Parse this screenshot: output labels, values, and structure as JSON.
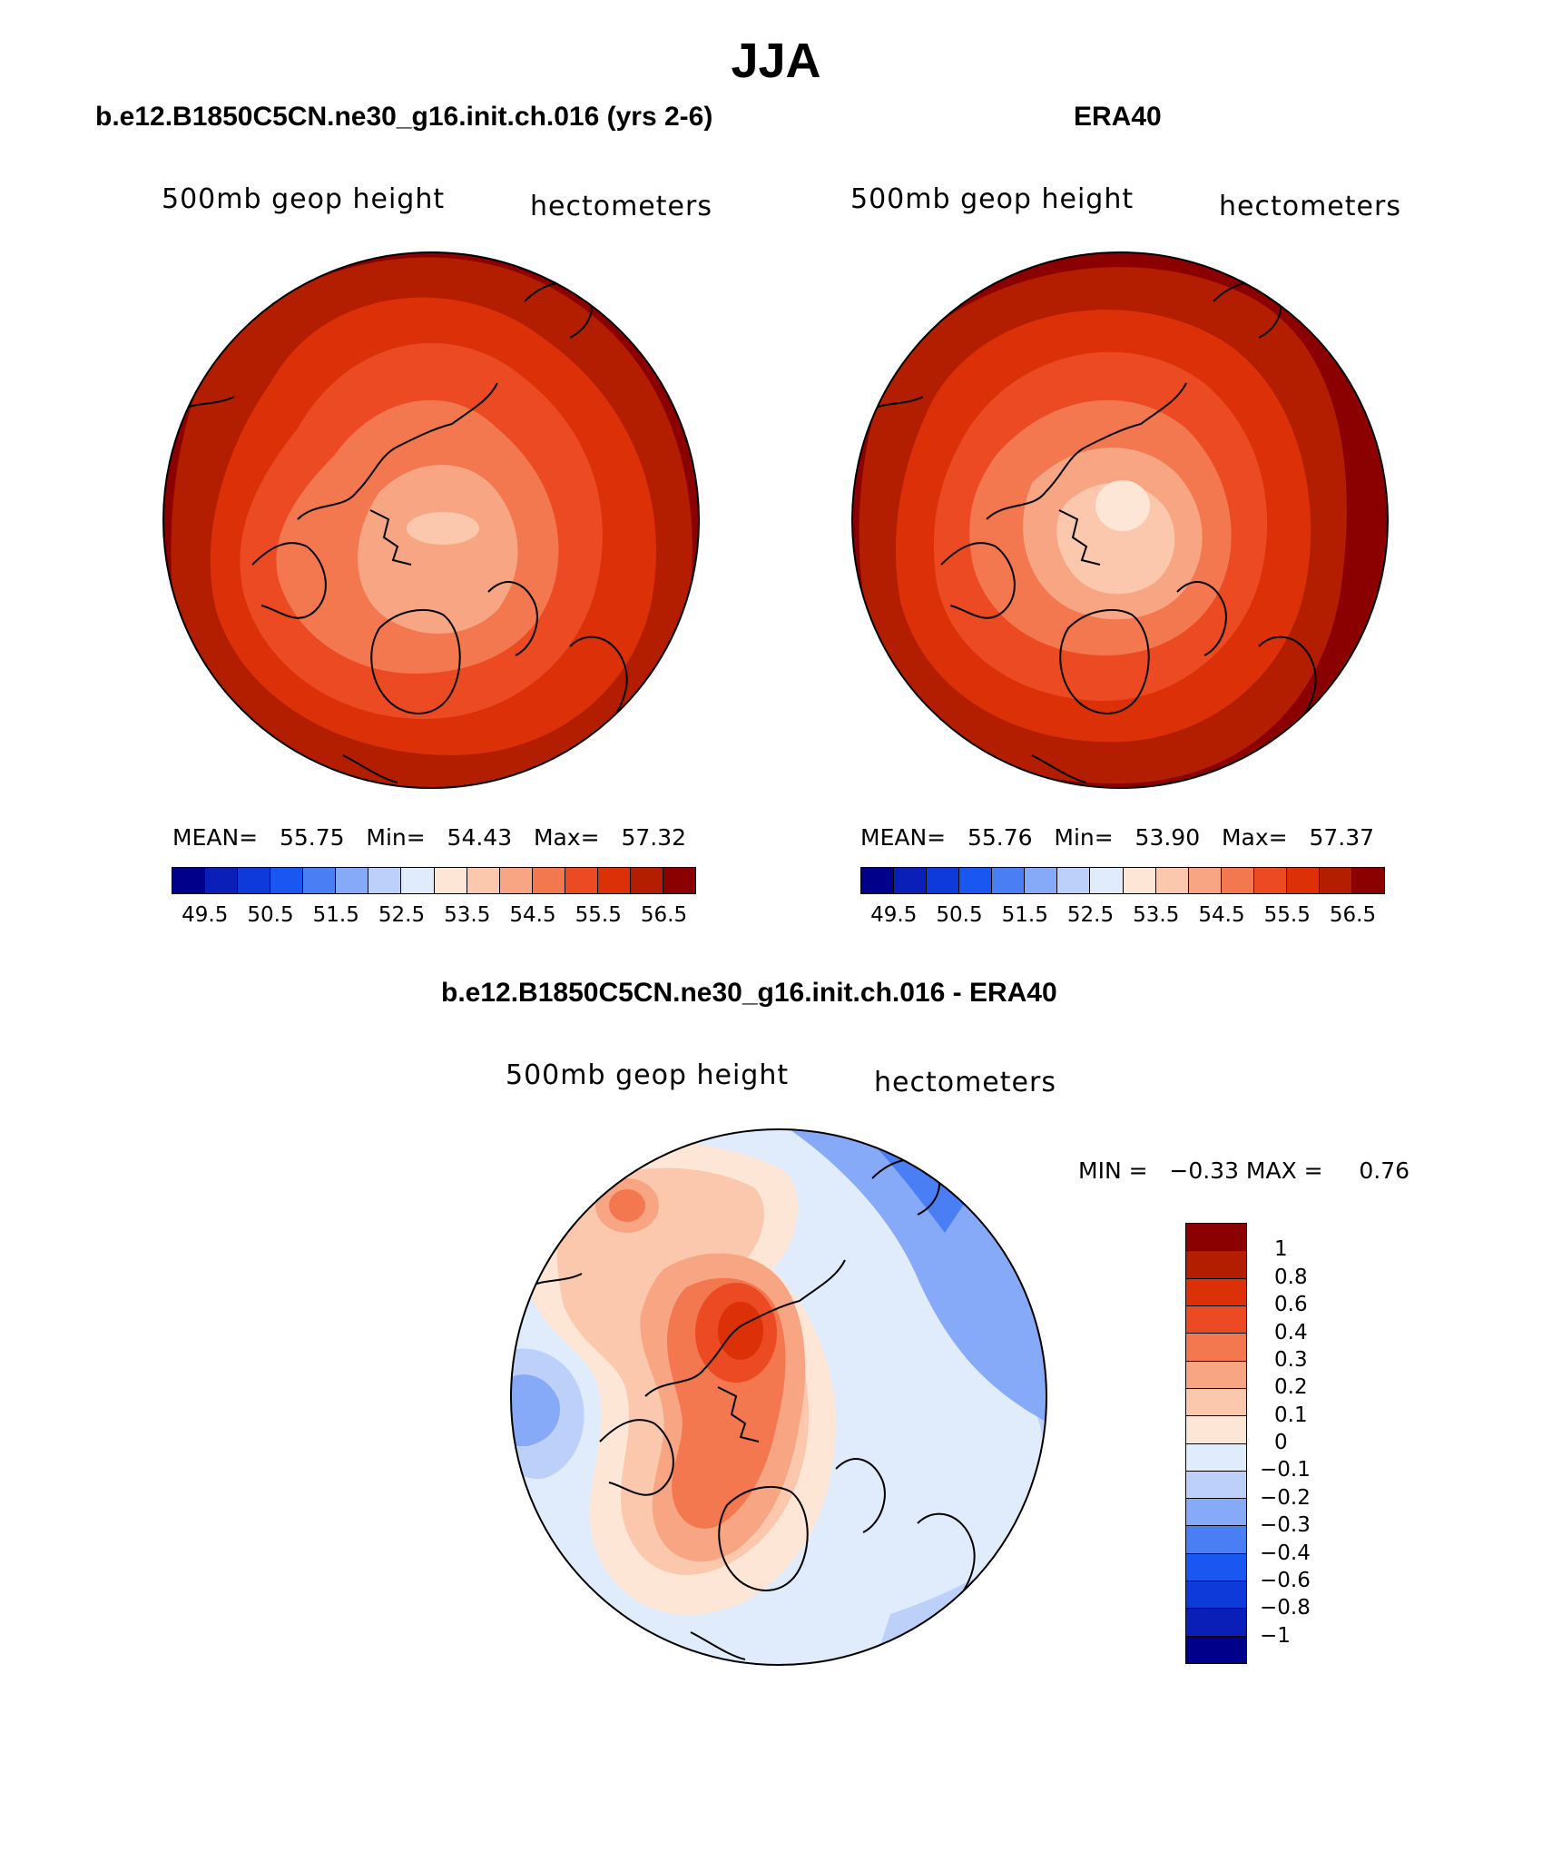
{
  "title": "JJA",
  "units_label": "hectometers",
  "variable_label": "500mb geop height",
  "panels": [
    {
      "title": "b.e12.B1850C5CN.ne30_g16.init.ch.016 (yrs 2-6)",
      "variable": "500mb geop height",
      "units": "hectometers",
      "stats": {
        "mean_label": "MEAN=",
        "mean": "55.75",
        "min_label": "Min=",
        "min": "54.43",
        "max_label": "Max=",
        "max": "57.32"
      }
    },
    {
      "title": "ERA40",
      "variable": "500mb geop height",
      "units": "hectometers",
      "stats": {
        "mean_label": "MEAN=",
        "mean": "55.76",
        "min_label": "Min=",
        "min": "53.90",
        "max_label": "Max=",
        "max": "57.37"
      }
    }
  ],
  "diff_panel": {
    "title": "b.e12.B1850C5CN.ne30_g16.init.ch.016 - ERA40",
    "variable": "500mb geop height",
    "units": "hectometers",
    "minmax": "MIN =   −0.33 MAX =     0.76"
  },
  "colorbar_abs": {
    "colors": [
      "#00008b",
      "#0a1fb8",
      "#0d3ad8",
      "#1a56f0",
      "#4a7ef5",
      "#86aaf7",
      "#bcd0f9",
      "#e0ecfc",
      "#fde6d6",
      "#fbc8ad",
      "#f8a584",
      "#f3784f",
      "#ec4a22",
      "#dc3009",
      "#b31d00",
      "#8b0000"
    ],
    "tick_labels": [
      "49.5",
      "50.5",
      "51.5",
      "52.5",
      "53.5",
      "54.5",
      "55.5",
      "56.5"
    ]
  },
  "colorbar_diff": {
    "colors": [
      "#8b0000",
      "#b31d00",
      "#dc3009",
      "#ec4a22",
      "#f3784f",
      "#f8a584",
      "#fbc8ad",
      "#fde6d6",
      "#e0ecfc",
      "#bcd0f9",
      "#86aaf7",
      "#4a7ef5",
      "#1a56f0",
      "#0d3ad8",
      "#0a1fb8",
      "#00008b"
    ],
    "tick_labels": [
      "1",
      "0.8",
      "0.6",
      "0.4",
      "0.3",
      "0.2",
      "0.1",
      "0",
      "−0.1",
      "−0.2",
      "−0.3",
      "−0.4",
      "−0.6",
      "−0.8",
      "−1"
    ]
  },
  "map_colors": {
    "c1": "#8b0000",
    "c2": "#b31d00",
    "c3": "#dc3009",
    "c4": "#ec4a22",
    "c5": "#f3784f",
    "c6": "#f8a584",
    "c7": "#fbc8ad",
    "c8": "#fde6d6",
    "b1": "#e0ecfc",
    "b2": "#bcd0f9",
    "b3": "#86aaf7",
    "b4": "#4a7ef5"
  }
}
